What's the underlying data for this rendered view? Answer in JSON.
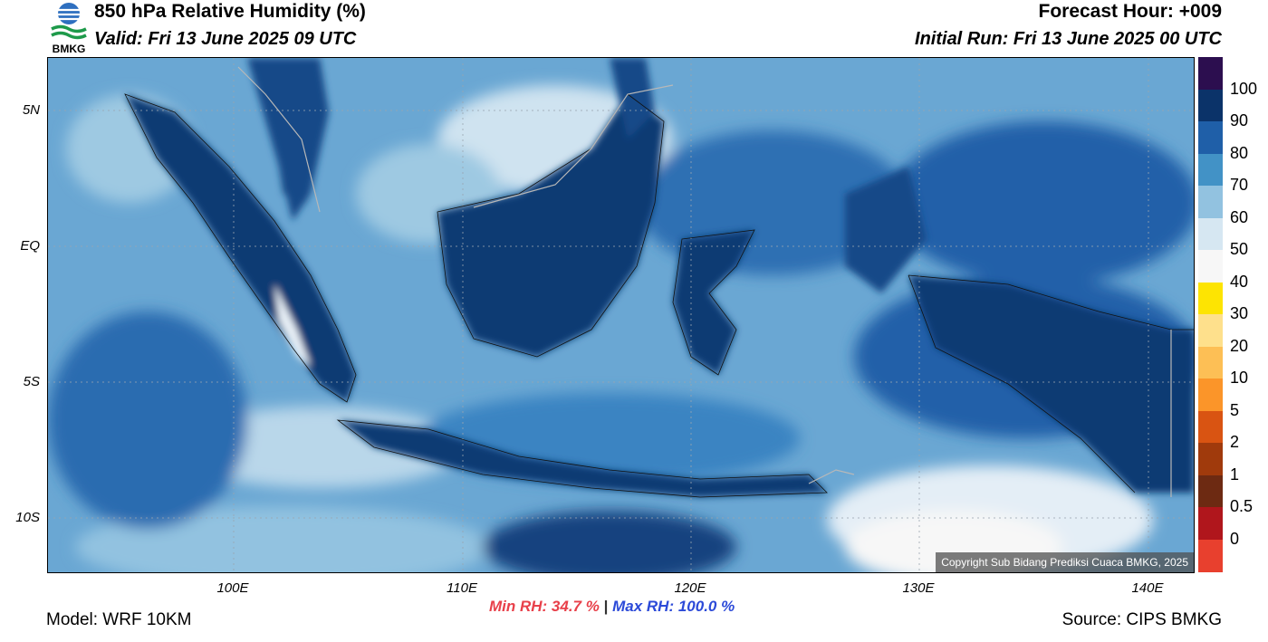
{
  "header": {
    "title": "850 hPa Relative Humidity (%)",
    "valid": "Valid: Fri 13 June 2025 09 UTC",
    "forecast_hour": "Forecast Hour: +009",
    "initial_run": "Initial Run: Fri 13 June 2025 00 UTC"
  },
  "logo": {
    "text": "BMKG"
  },
  "map": {
    "lat_labels": [
      "5N",
      "EQ",
      "5S",
      "10S"
    ],
    "lon_labels": [
      "100E",
      "110E",
      "120E",
      "130E",
      "140E"
    ],
    "copyright": "Copyright Sub Bidang Prediksi Cuaca BMKG, 2025",
    "ocean_color": "#9ec9e2",
    "land_color": "#1f5a9e"
  },
  "colorbar": {
    "labels": [
      "100",
      "90",
      "80",
      "70",
      "60",
      "50",
      "40",
      "30",
      "20",
      "10",
      "5",
      "2",
      "1",
      "0.5",
      "0"
    ],
    "colors": [
      "#2c0e4f",
      "#0b3369",
      "#1f5fa8",
      "#4292c6",
      "#92c2e0",
      "#d6e7f2",
      "#f7f7f7",
      "#fde402",
      "#fee08c",
      "#fdbf55",
      "#fb9529",
      "#d95412",
      "#a03a0c",
      "#6d2a12",
      "#b0161c",
      "#e8402e"
    ]
  },
  "footer": {
    "model": "Model: WRF 10KM",
    "min_rh": "Min RH:  34.7 %",
    "separator": "|",
    "max_rh": "Max RH: 100.0 %",
    "source": "Source: CIPS BMKG"
  }
}
